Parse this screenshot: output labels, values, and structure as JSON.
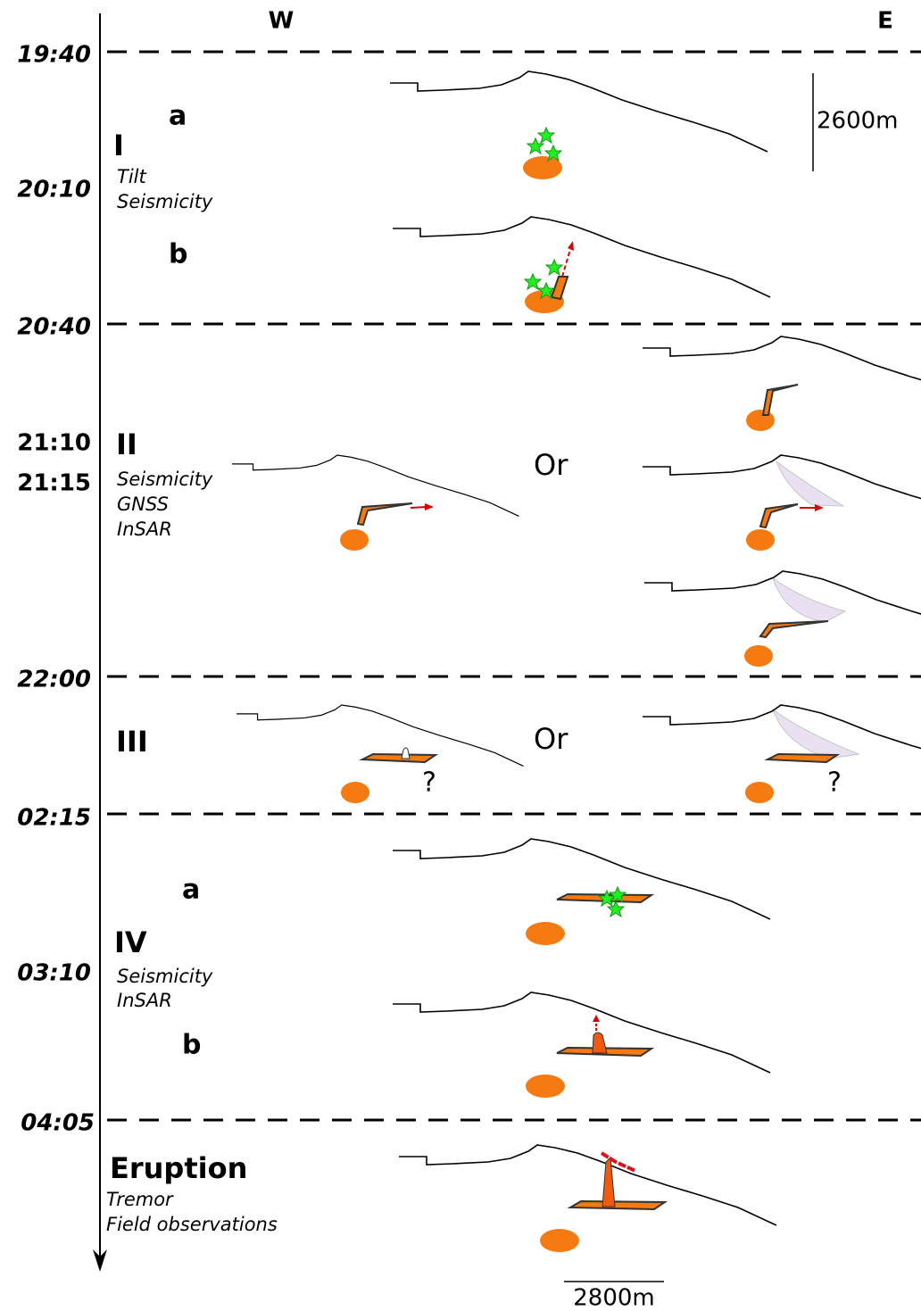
{
  "header": {
    "west": "W",
    "east": "E"
  },
  "times": [
    "19:40",
    "20:10",
    "20:40",
    "21:10",
    "21:15",
    "22:00",
    "02:15",
    "03:10",
    "04:05"
  ],
  "phases": [
    {
      "label": "I",
      "observations": [
        "Tilt",
        "Seismicity"
      ],
      "steps": [
        "a",
        "b"
      ]
    },
    {
      "label": "II",
      "observations": [
        "Seismicity",
        "GNSS",
        "InSAR"
      ],
      "alternative": "Or"
    },
    {
      "label": "III",
      "alternative": "Or",
      "uncertain": [
        "?",
        "?"
      ]
    },
    {
      "label": "IV",
      "observations": [
        "Seismicity",
        "InSAR"
      ],
      "steps": [
        "a",
        "b"
      ]
    },
    {
      "label": "Eruption",
      "observations": [
        "Tremor",
        "Field observations"
      ]
    }
  ],
  "scales": {
    "vertical": "2600m",
    "horizontal": "2800m"
  }
}
